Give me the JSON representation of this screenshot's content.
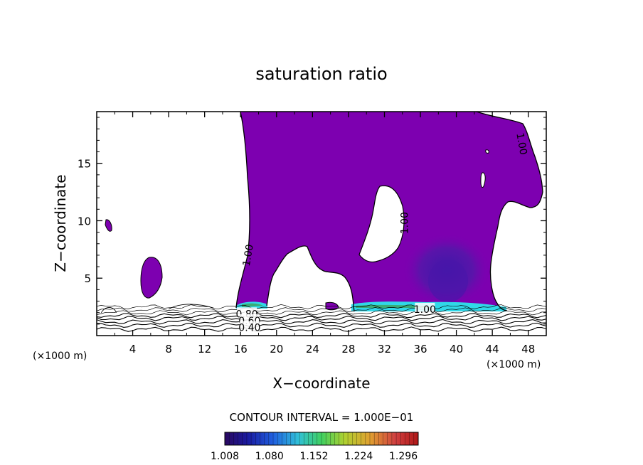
{
  "chart_data": {
    "type": "contour",
    "title": "saturation ratio",
    "xlabel": "X−coordinate",
    "ylabel": "Z−coordinate",
    "x_unit_left": "(×1000 m)",
    "x_unit_right": "(×1000 m)",
    "xlim": [
      0,
      50
    ],
    "ylim": [
      0,
      19.5
    ],
    "x_ticks": [
      "4",
      "8",
      "12",
      "16",
      "20",
      "24",
      "28",
      "32",
      "36",
      "40",
      "44",
      "48"
    ],
    "x_tick_values": [
      4,
      8,
      12,
      16,
      20,
      24,
      28,
      32,
      36,
      40,
      44,
      48
    ],
    "y_ticks": [
      "5",
      "10",
      "15"
    ],
    "y_tick_values": [
      5,
      10,
      15
    ],
    "contour_labels": [
      {
        "text": "1.00",
        "x": 16.8,
        "z": 7.0,
        "rotate": -80
      },
      {
        "text": "1.00",
        "x": 34.2,
        "z": 9.8,
        "rotate": -90
      },
      {
        "text": "1.00",
        "x": 47.3,
        "z": 16.7,
        "rotate": 80
      },
      {
        "text": "1.00",
        "x": 36.5,
        "z": 2.3,
        "rotate": 0
      },
      {
        "text": "0.80",
        "x": 16.7,
        "z": 1.9,
        "rotate": 0
      },
      {
        "text": "0.60",
        "x": 17.0,
        "z": 1.3,
        "rotate": 0
      },
      {
        "text": "0.40",
        "x": 17.0,
        "z": 0.7,
        "rotate": 0
      }
    ],
    "contour_interval_label": "CONTOUR INTERVAL = 1.000E−01",
    "colorbar": {
      "labels": [
        "1.008",
        "1.080",
        "1.152",
        "1.224",
        "1.296"
      ],
      "values": [
        1.008,
        1.08,
        1.152,
        1.224,
        1.296
      ],
      "min": 1.008,
      "max": 1.32
    },
    "colors": {
      "supersaturated_fill": "#7d00b0",
      "core_fill": "#5a10a8",
      "deep_core_fill": "#3c18a8",
      "edge_cyan": "#30d8e8",
      "edge_green": "#3aa86a",
      "axis": "#000000"
    }
  }
}
